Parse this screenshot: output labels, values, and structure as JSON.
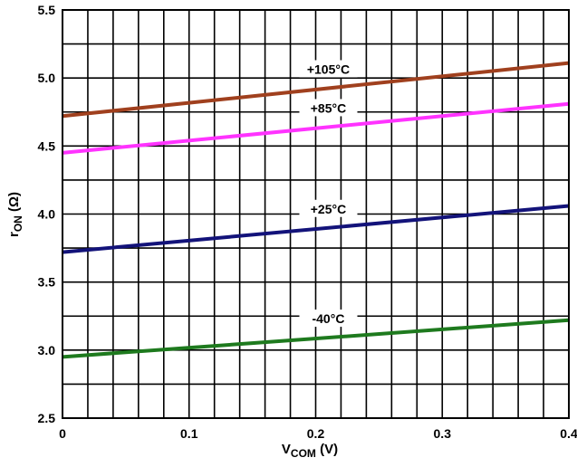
{
  "chart_data": {
    "type": "line",
    "xlabel": {
      "main": "V",
      "sub": "COM",
      "rest": " (V)"
    },
    "ylabel": {
      "main": "r",
      "sub": "ON",
      "rest": " (Ω)"
    },
    "xlim": [
      0,
      0.4
    ],
    "ylim": [
      2.5,
      5.5
    ],
    "x_ticks": [
      "0",
      "0.1",
      "0.2",
      "0.3",
      "0.4"
    ],
    "y_ticks": [
      "2.5",
      "3.0",
      "3.5",
      "4.0",
      "4.5",
      "5.0",
      "5.5"
    ],
    "grid": true,
    "series": [
      {
        "name": "+105°C",
        "color": "#a0401e",
        "x": [
          0,
          0.4
        ],
        "y": [
          4.72,
          5.11
        ]
      },
      {
        "name": "+85°C",
        "color": "#ff33ff",
        "x": [
          0,
          0.4
        ],
        "y": [
          4.45,
          4.81
        ]
      },
      {
        "name": "+25°C",
        "color": "#13137a",
        "x": [
          0,
          0.4
        ],
        "y": [
          3.72,
          4.06
        ]
      },
      {
        "name": "-40°C",
        "color": "#1e7a1e",
        "x": [
          0,
          0.4
        ],
        "y": [
          2.95,
          3.22
        ]
      }
    ]
  }
}
